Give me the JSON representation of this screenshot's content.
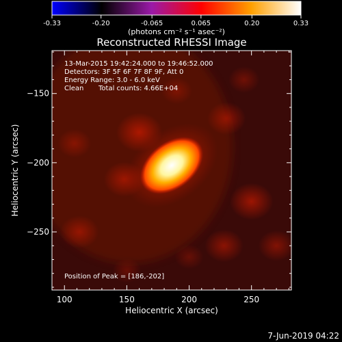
{
  "colorbar": {
    "ticks": [
      "-0.33",
      "-0.20",
      "-0.065",
      "0.065",
      "0.20",
      "0.33"
    ],
    "unit_label": "(photons cm⁻² s⁻¹ asec⁻²)"
  },
  "image_info": {
    "time_range": "13-Mar-2015 19:42:24.000 to 19:46:52.000",
    "detectors": "Detectors: 3F 5F 6F 7F 8F 9F, Att 0",
    "energy_range": "Energy Range: 3.0 - 6.0 keV",
    "algorithm": "Clean",
    "total_counts": "Total counts: 4.66E+04",
    "peak_position": "Position of Peak = [186,-202]"
  },
  "footer": {
    "date": "7-Jun-2019 04:22"
  },
  "chart_data": {
    "type": "heatmap",
    "title": "Reconstructed RHESSI Image",
    "xlabel": "Heliocentric X (arcsec)",
    "ylabel": "Heliocentric Y (arcsec)",
    "xlim": [
      90,
      282
    ],
    "ylim": [
      -292,
      -119
    ],
    "x_ticks": [
      100,
      150,
      200,
      250
    ],
    "y_ticks": [
      -150,
      -200,
      -250
    ],
    "color_range": [
      -0.33,
      0.33
    ],
    "colormap": [
      "#0000ff",
      "#000000",
      "#9a1aa8",
      "#ff0000",
      "#ffa000",
      "#ffffff"
    ],
    "peak": {
      "x": 186,
      "y": -202
    },
    "source": {
      "x": 186,
      "y": -202,
      "sigma_major": 13,
      "sigma_minor": 7,
      "angle_deg": 38,
      "amplitude": 0.33
    },
    "background": [
      {
        "x": 112,
        "y": -250,
        "a": 0.09
      },
      {
        "x": 148,
        "y": -212,
        "a": 0.1
      },
      {
        "x": 160,
        "y": -178,
        "a": 0.12
      },
      {
        "x": 108,
        "y": -186,
        "a": 0.07
      },
      {
        "x": 230,
        "y": -168,
        "a": 0.09
      },
      {
        "x": 250,
        "y": -228,
        "a": 0.11
      },
      {
        "x": 228,
        "y": -260,
        "a": 0.09
      },
      {
        "x": 270,
        "y": -260,
        "a": 0.08
      },
      {
        "x": 200,
        "y": -268,
        "a": 0.05
      },
      {
        "x": 150,
        "y": -278,
        "a": 0.05
      },
      {
        "x": 244,
        "y": -140,
        "a": 0.06
      },
      {
        "x": 190,
        "y": -148,
        "a": 0.06
      }
    ]
  }
}
